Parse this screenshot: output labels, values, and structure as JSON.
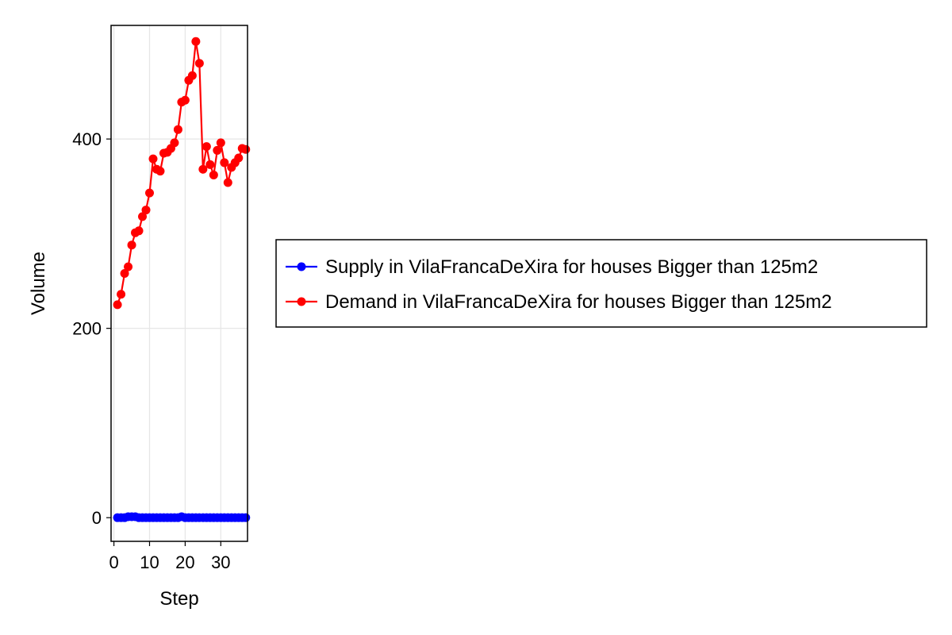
{
  "chart_data": {
    "type": "line",
    "title": "",
    "xlabel": "Step",
    "ylabel": "Volume",
    "xlim": [
      -0.8,
      37.5
    ],
    "ylim": [
      -25,
      520
    ],
    "xticks": [
      0,
      10,
      20,
      30
    ],
    "yticks": [
      0,
      200,
      400
    ],
    "grid": true,
    "legend_position": "right",
    "series": [
      {
        "name": "Supply in VilaFrancaDeXira for houses Bigger than 125m2",
        "color": "#0000ff",
        "x": [
          1,
          2,
          3,
          4,
          5,
          6,
          7,
          8,
          9,
          10,
          11,
          12,
          13,
          14,
          15,
          16,
          17,
          18,
          19,
          20,
          21,
          22,
          23,
          24,
          25,
          26,
          27,
          28,
          29,
          30,
          31,
          32,
          33,
          34,
          35,
          36,
          37
        ],
        "y": [
          0,
          0,
          0,
          1,
          1,
          1,
          0,
          0,
          0,
          0,
          0,
          0,
          0,
          0,
          0,
          0,
          0,
          0,
          1,
          0,
          0,
          0,
          0,
          0,
          0,
          0,
          0,
          0,
          0,
          0,
          0,
          0,
          0,
          0,
          0,
          0,
          0
        ]
      },
      {
        "name": "Demand in VilaFrancaDeXira for houses Bigger than 125m2",
        "color": "#ff0000",
        "x": [
          1,
          2,
          3,
          4,
          5,
          6,
          7,
          8,
          9,
          10,
          11,
          12,
          13,
          14,
          15,
          16,
          17,
          18,
          19,
          20,
          21,
          22,
          23,
          24,
          25,
          26,
          27,
          28,
          29,
          30,
          31,
          32,
          33,
          34,
          35,
          36,
          37
        ],
        "y": [
          225,
          236,
          258,
          265,
          288,
          301,
          303,
          318,
          325,
          343,
          379,
          368,
          366,
          385,
          386,
          390,
          396,
          410,
          439,
          441,
          462,
          467,
          503,
          480,
          368,
          392,
          373,
          362,
          388,
          396,
          375,
          354,
          370,
          375,
          380,
          390,
          389
        ]
      }
    ]
  }
}
